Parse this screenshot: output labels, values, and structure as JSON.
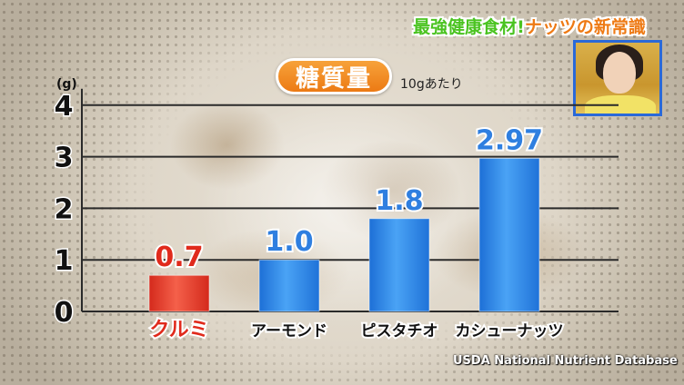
{
  "banner": {
    "part1": "最強健康食材!",
    "part2": "ナッツの新常識"
  },
  "title": "糖質量",
  "subtitle": "10gあたり",
  "unit": "(g)",
  "source": "USDA National Nutrient Database",
  "colors": {
    "highlight_bar": "#e8392b",
    "bar": "#2f8be8",
    "highlight_label": "#e02a1c",
    "value_label": "#2f7fe0",
    "title_pill": "#ef8420",
    "banner_green": "#4ac320",
    "banner_orange": "#ee7a14"
  },
  "chart_data": {
    "type": "bar",
    "categories": [
      "クルミ",
      "アーモンド",
      "ピスタチオ",
      "カシューナッツ"
    ],
    "values": [
      0.7,
      1.0,
      1.8,
      2.97
    ],
    "value_labels": [
      "0.7",
      "1.0",
      "1.8",
      "2.97"
    ],
    "highlight_index": 0,
    "ylim": [
      0,
      4
    ],
    "yticks": [
      0,
      1,
      2,
      3,
      4
    ],
    "ylabel": "(g)",
    "title": "糖質量",
    "grid": true
  }
}
